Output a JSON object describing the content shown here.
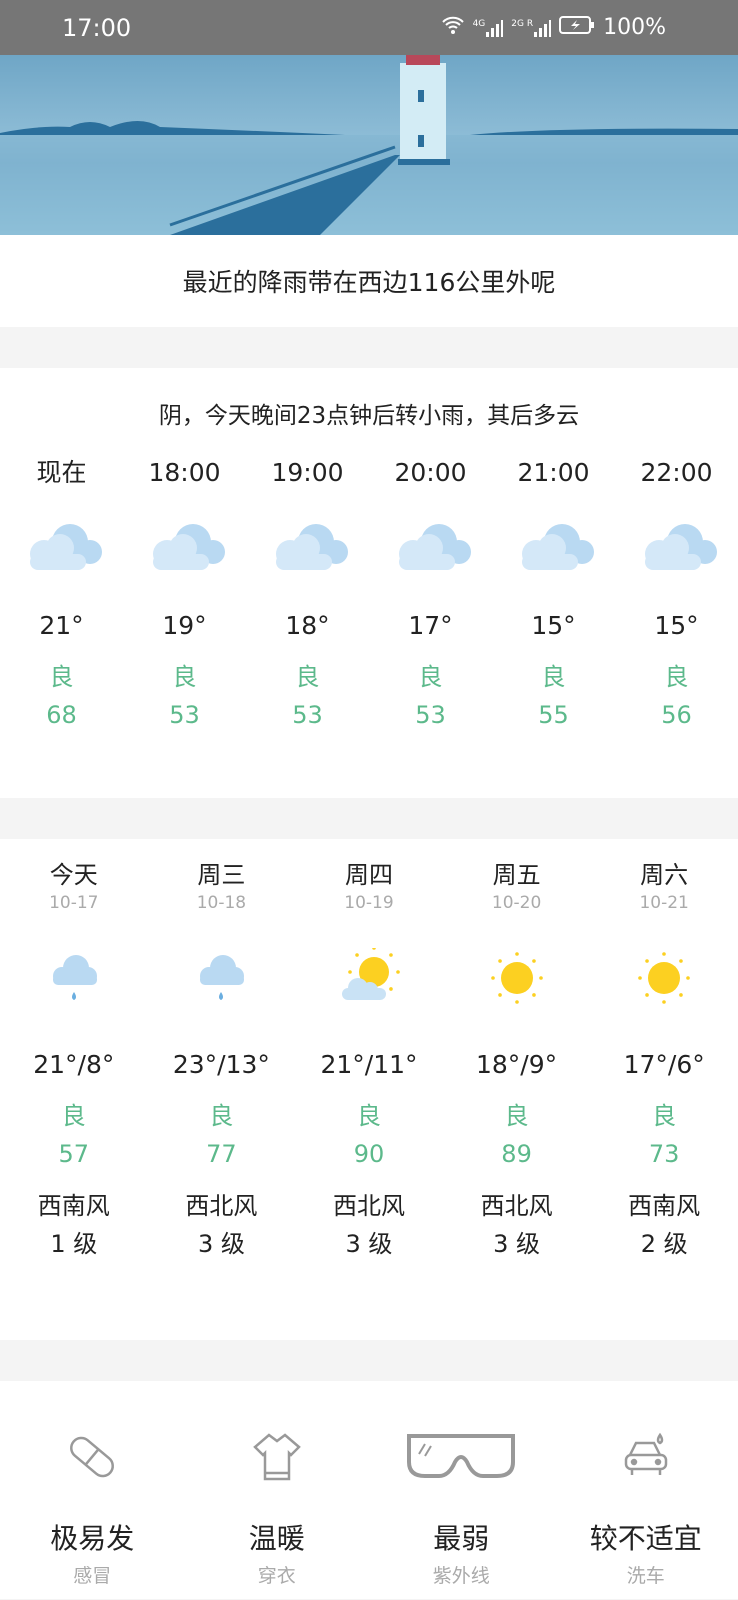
{
  "status_bar": {
    "time": "17:00",
    "battery": "100%",
    "net1": "4G",
    "net2": "2G R"
  },
  "banner": {
    "message": "最近的降雨带在西边116公里外呢"
  },
  "hourly": {
    "summary": "阴，今天晚间23点钟后转小雨，其后多云",
    "items": [
      {
        "time": "现在",
        "icon": "cloudy-icon",
        "temp": "21°",
        "aqi_label": "良",
        "aqi": "68"
      },
      {
        "time": "18:00",
        "icon": "cloudy-icon",
        "temp": "19°",
        "aqi_label": "良",
        "aqi": "53"
      },
      {
        "time": "19:00",
        "icon": "cloudy-icon",
        "temp": "18°",
        "aqi_label": "良",
        "aqi": "53"
      },
      {
        "time": "20:00",
        "icon": "cloudy-icon",
        "temp": "17°",
        "aqi_label": "良",
        "aqi": "53"
      },
      {
        "time": "21:00",
        "icon": "cloudy-icon",
        "temp": "15°",
        "aqi_label": "良",
        "aqi": "55"
      },
      {
        "time": "22:00",
        "icon": "cloudy-icon",
        "temp": "15°",
        "aqi_label": "良",
        "aqi": "56"
      }
    ]
  },
  "daily": [
    {
      "day": "今天",
      "date": "10-17",
      "icon": "light-rain-icon",
      "range": "21°/8°",
      "aqi_label": "良",
      "aqi": "57",
      "wind": "西南风",
      "level": "1 级"
    },
    {
      "day": "周三",
      "date": "10-18",
      "icon": "light-rain-icon",
      "range": "23°/13°",
      "aqi_label": "良",
      "aqi": "77",
      "wind": "西北风",
      "level": "3 级"
    },
    {
      "day": "周四",
      "date": "10-19",
      "icon": "partly-cloudy-icon",
      "range": "21°/11°",
      "aqi_label": "良",
      "aqi": "90",
      "wind": "西北风",
      "level": "3 级"
    },
    {
      "day": "周五",
      "date": "10-20",
      "icon": "sunny-icon",
      "range": "18°/9°",
      "aqi_label": "良",
      "aqi": "89",
      "wind": "西北风",
      "level": "3 级"
    },
    {
      "day": "周六",
      "date": "10-21",
      "icon": "sunny-icon",
      "range": "17°/6°",
      "aqi_label": "良",
      "aqi": "73",
      "wind": "西南风",
      "level": "2 级"
    }
  ],
  "life": [
    {
      "icon": "pill-icon",
      "value": "极易发",
      "label": "感冒"
    },
    {
      "icon": "tshirt-icon",
      "value": "温暖",
      "label": "穿衣"
    },
    {
      "icon": "sunglasses-icon",
      "value": "最弱",
      "label": "紫外线"
    },
    {
      "icon": "car-wash-icon",
      "value": "较不适宜",
      "label": "洗车"
    }
  ],
  "colors": {
    "aqi_good": "#5cb98b",
    "sun": "#fcd021",
    "cloud": "#b9d9f2"
  }
}
